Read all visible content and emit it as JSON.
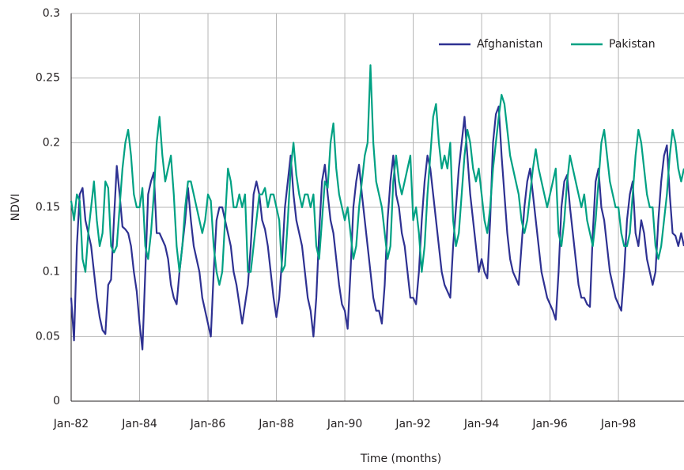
{
  "chart_data": {
    "type": "line",
    "xlabel": "Time (months)",
    "ylabel": "NDVI",
    "categories": [
      "Jan-82",
      null,
      null,
      null,
      null,
      null,
      null,
      null,
      null,
      null,
      null,
      null,
      null,
      null,
      null,
      null,
      null,
      null,
      null,
      null,
      null,
      null,
      null,
      null,
      "Jan-84",
      null,
      null,
      null,
      null,
      null,
      null,
      null,
      null,
      null,
      null,
      null,
      null,
      null,
      null,
      null,
      null,
      null,
      null,
      null,
      null,
      null,
      null,
      null,
      "Jan-86",
      null,
      null,
      null,
      null,
      null,
      null,
      null,
      null,
      null,
      null,
      null,
      null,
      null,
      null,
      null,
      null,
      null,
      null,
      null,
      null,
      null,
      null,
      null,
      "Jan-88",
      null,
      null,
      null,
      null,
      null,
      null,
      null,
      null,
      null,
      null,
      null,
      null,
      null,
      null,
      null,
      null,
      null,
      null,
      null,
      null,
      null,
      null,
      null,
      "Jan-90",
      null,
      null,
      null,
      null,
      null,
      null,
      null,
      null,
      null,
      null,
      null,
      null,
      null,
      null,
      null,
      null,
      null,
      null,
      null,
      null,
      null,
      null,
      null,
      "Jan-92",
      null,
      null,
      null,
      null,
      null,
      null,
      null,
      null,
      null,
      null,
      null,
      null,
      null,
      null,
      null,
      null,
      null,
      null,
      null,
      null,
      null,
      null,
      null,
      "Jan-94",
      null,
      null,
      null,
      null,
      null,
      null,
      null,
      null,
      null,
      null,
      null,
      null,
      null,
      null,
      null,
      null,
      null,
      null,
      null,
      null,
      null,
      null,
      null,
      "Jan-96",
      null,
      null,
      null,
      null,
      null,
      null,
      null,
      null,
      null,
      null,
      null,
      null,
      null,
      null,
      null,
      null,
      null,
      null,
      null,
      null,
      null,
      null,
      null,
      "Jan-98",
      null,
      null,
      null,
      null,
      null,
      null,
      null,
      null,
      null,
      null,
      null,
      null,
      null,
      null,
      null,
      null,
      null,
      null,
      null,
      null,
      null,
      null,
      null
    ],
    "series": [
      {
        "name": "Afghanistan",
        "color": "#2e3192",
        "values": [
          0.08,
          0.047,
          0.12,
          0.16,
          0.165,
          0.14,
          0.13,
          0.12,
          0.1,
          0.08,
          0.065,
          0.055,
          0.052,
          0.09,
          0.094,
          0.14,
          0.182,
          0.16,
          0.135,
          0.133,
          0.13,
          0.12,
          0.1,
          0.085,
          0.06,
          0.04,
          0.1,
          0.16,
          0.17,
          0.177,
          0.13,
          0.13,
          0.125,
          0.12,
          0.11,
          0.09,
          0.08,
          0.075,
          0.1,
          0.12,
          0.14,
          0.165,
          0.14,
          0.12,
          0.11,
          0.1,
          0.08,
          0.07,
          0.06,
          0.05,
          0.1,
          0.14,
          0.15,
          0.15,
          0.14,
          0.13,
          0.12,
          0.1,
          0.09,
          0.075,
          0.06,
          0.075,
          0.09,
          0.12,
          0.16,
          0.17,
          0.16,
          0.14,
          0.133,
          0.12,
          0.1,
          0.08,
          0.065,
          0.08,
          0.11,
          0.15,
          0.17,
          0.19,
          0.16,
          0.14,
          0.13,
          0.12,
          0.1,
          0.08,
          0.07,
          0.05,
          0.08,
          0.13,
          0.17,
          0.183,
          0.16,
          0.14,
          0.13,
          0.11,
          0.09,
          0.075,
          0.07,
          0.056,
          0.1,
          0.15,
          0.17,
          0.183,
          0.16,
          0.14,
          0.12,
          0.1,
          0.08,
          0.07,
          0.07,
          0.06,
          0.09,
          0.14,
          0.17,
          0.19,
          0.16,
          0.15,
          0.13,
          0.12,
          0.1,
          0.08,
          0.08,
          0.075,
          0.1,
          0.14,
          0.17,
          0.19,
          0.18,
          0.16,
          0.14,
          0.12,
          0.1,
          0.09,
          0.085,
          0.08,
          0.12,
          0.15,
          0.18,
          0.2,
          0.22,
          0.19,
          0.16,
          0.14,
          0.12,
          0.1,
          0.11,
          0.1,
          0.095,
          0.14,
          0.2,
          0.222,
          0.228,
          0.19,
          0.16,
          0.13,
          0.11,
          0.1,
          0.095,
          0.09,
          0.12,
          0.15,
          0.17,
          0.18,
          0.16,
          0.14,
          0.12,
          0.1,
          0.09,
          0.08,
          0.075,
          0.07,
          0.063,
          0.1,
          0.15,
          0.17,
          0.175,
          0.15,
          0.13,
          0.11,
          0.09,
          0.08,
          0.08,
          0.075,
          0.073,
          0.13,
          0.17,
          0.18,
          0.15,
          0.14,
          0.12,
          0.1,
          0.09,
          0.08,
          0.075,
          0.07,
          0.1,
          0.14,
          0.16,
          0.17,
          0.13,
          0.12,
          0.14,
          0.13,
          0.11,
          0.1,
          0.09,
          0.1,
          0.14,
          0.17,
          0.19,
          0.198,
          0.16,
          0.13,
          0.128,
          0.12,
          0.13,
          0.12
        ]
      },
      {
        "name": "Pakistan",
        "color": "#00a183",
        "values": [
          0.155,
          0.14,
          0.16,
          0.155,
          0.11,
          0.1,
          0.13,
          0.15,
          0.17,
          0.14,
          0.12,
          0.13,
          0.17,
          0.165,
          0.12,
          0.115,
          0.12,
          0.15,
          0.18,
          0.2,
          0.21,
          0.19,
          0.16,
          0.15,
          0.15,
          0.165,
          0.12,
          0.11,
          0.13,
          0.16,
          0.2,
          0.22,
          0.19,
          0.17,
          0.18,
          0.19,
          0.16,
          0.12,
          0.1,
          0.12,
          0.15,
          0.17,
          0.17,
          0.16,
          0.15,
          0.14,
          0.13,
          0.14,
          0.16,
          0.155,
          0.12,
          0.1,
          0.09,
          0.1,
          0.14,
          0.18,
          0.17,
          0.15,
          0.15,
          0.16,
          0.15,
          0.16,
          0.1,
          0.1,
          0.12,
          0.14,
          0.16,
          0.16,
          0.165,
          0.15,
          0.16,
          0.16,
          0.15,
          0.14,
          0.1,
          0.105,
          0.14,
          0.18,
          0.2,
          0.175,
          0.16,
          0.15,
          0.16,
          0.16,
          0.15,
          0.16,
          0.12,
          0.11,
          0.14,
          0.17,
          0.165,
          0.2,
          0.215,
          0.18,
          0.16,
          0.15,
          0.14,
          0.15,
          0.13,
          0.11,
          0.12,
          0.15,
          0.17,
          0.19,
          0.2,
          0.26,
          0.2,
          0.17,
          0.16,
          0.15,
          0.13,
          0.11,
          0.12,
          0.17,
          0.19,
          0.17,
          0.16,
          0.17,
          0.18,
          0.19,
          0.14,
          0.15,
          0.13,
          0.1,
          0.12,
          0.16,
          0.19,
          0.22,
          0.23,
          0.2,
          0.18,
          0.19,
          0.18,
          0.2,
          0.14,
          0.12,
          0.13,
          0.16,
          0.19,
          0.21,
          0.2,
          0.18,
          0.17,
          0.18,
          0.16,
          0.14,
          0.13,
          0.15,
          0.18,
          0.2,
          0.22,
          0.237,
          0.23,
          0.21,
          0.19,
          0.18,
          0.17,
          0.16,
          0.14,
          0.13,
          0.14,
          0.16,
          0.18,
          0.195,
          0.18,
          0.17,
          0.16,
          0.15,
          0.16,
          0.17,
          0.18,
          0.13,
          0.12,
          0.14,
          0.17,
          0.19,
          0.18,
          0.17,
          0.16,
          0.15,
          0.16,
          0.14,
          0.13,
          0.12,
          0.14,
          0.17,
          0.2,
          0.21,
          0.19,
          0.17,
          0.16,
          0.15,
          0.15,
          0.13,
          0.12,
          0.12,
          0.13,
          0.16,
          0.19,
          0.21,
          0.2,
          0.18,
          0.16,
          0.15,
          0.15,
          0.12,
          0.11,
          0.12,
          0.14,
          0.16,
          0.19,
          0.21,
          0.2,
          0.18,
          0.17,
          0.18
        ]
      }
    ],
    "ylim": [
      0,
      0.3
    ],
    "yticks": [
      0,
      0.05,
      0.1,
      0.15,
      0.2,
      0.25,
      0.3
    ],
    "grid": true,
    "legend": "upper right"
  }
}
